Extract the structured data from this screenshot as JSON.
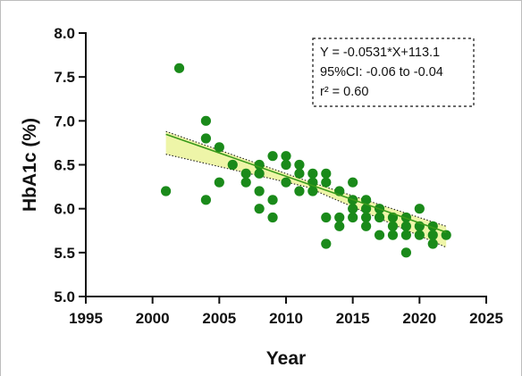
{
  "chart_data": {
    "type": "scatter",
    "title": "",
    "xlabel": "Year",
    "ylabel": "HbA1c (%)",
    "xlim": [
      1995,
      2025
    ],
    "ylim": [
      5.0,
      8.0
    ],
    "x_ticks": [
      "1995",
      "2000",
      "2005",
      "2010",
      "2015",
      "2020",
      "2025"
    ],
    "y_ticks": [
      "5.0",
      "5.5",
      "6.0",
      "6.5",
      "7.0",
      "7.5",
      "8.0"
    ],
    "grid": false,
    "series": [
      {
        "points": [
          [
            2001,
            6.2
          ],
          [
            2002,
            7.6
          ],
          [
            2004,
            7.0
          ],
          [
            2004,
            6.8
          ],
          [
            2004,
            6.1
          ],
          [
            2005,
            6.7
          ],
          [
            2005,
            6.3
          ],
          [
            2006,
            6.5
          ],
          [
            2007,
            6.4
          ],
          [
            2007,
            6.3
          ],
          [
            2008,
            6.5
          ],
          [
            2008,
            6.4
          ],
          [
            2008,
            6.2
          ],
          [
            2008,
            6.0
          ],
          [
            2009,
            6.6
          ],
          [
            2009,
            6.1
          ],
          [
            2009,
            5.9
          ],
          [
            2010,
            6.6
          ],
          [
            2010,
            6.5
          ],
          [
            2010,
            6.3
          ],
          [
            2011,
            6.5
          ],
          [
            2011,
            6.4
          ],
          [
            2011,
            6.2
          ],
          [
            2012,
            6.4
          ],
          [
            2012,
            6.3
          ],
          [
            2012,
            6.2
          ],
          [
            2013,
            6.4
          ],
          [
            2013,
            6.3
          ],
          [
            2013,
            5.9
          ],
          [
            2013,
            5.6
          ],
          [
            2014,
            6.2
          ],
          [
            2014,
            5.9
          ],
          [
            2014,
            5.8
          ],
          [
            2015,
            6.3
          ],
          [
            2015,
            6.1
          ],
          [
            2015,
            6.0
          ],
          [
            2015,
            5.9
          ],
          [
            2016,
            6.1
          ],
          [
            2016,
            6.0
          ],
          [
            2016,
            5.9
          ],
          [
            2016,
            5.8
          ],
          [
            2017,
            6.0
          ],
          [
            2017,
            5.9
          ],
          [
            2017,
            5.7
          ],
          [
            2018,
            5.9
          ],
          [
            2018,
            5.8
          ],
          [
            2018,
            5.7
          ],
          [
            2019,
            5.9
          ],
          [
            2019,
            5.8
          ],
          [
            2019,
            5.7
          ],
          [
            2019,
            5.5
          ],
          [
            2020,
            6.0
          ],
          [
            2020,
            5.8
          ],
          [
            2020,
            5.7
          ],
          [
            2021,
            5.8
          ],
          [
            2021,
            5.7
          ],
          [
            2021,
            5.6
          ],
          [
            2022,
            5.7
          ]
        ],
        "color": "#1a8a1a"
      }
    ],
    "regression": {
      "slope": -0.0531,
      "intercept": 113.1,
      "x_range": [
        2001,
        2022
      ],
      "line_color": "#3a9a1a",
      "band_color": "#eef5a8",
      "ci_band_upper": [
        [
          2001,
          6.88
        ],
        [
          2011.5,
          6.32
        ],
        [
          2022,
          5.8
        ]
      ],
      "ci_band_lower": [
        [
          2001,
          6.62
        ],
        [
          2011.5,
          6.25
        ],
        [
          2022,
          5.56
        ]
      ]
    },
    "stats_box": {
      "lines": [
        "Y = -0.0531*X+113.1",
        "95%CI: -0.06 to -0.04",
        "r² = 0.60"
      ],
      "position": "top-right"
    }
  }
}
